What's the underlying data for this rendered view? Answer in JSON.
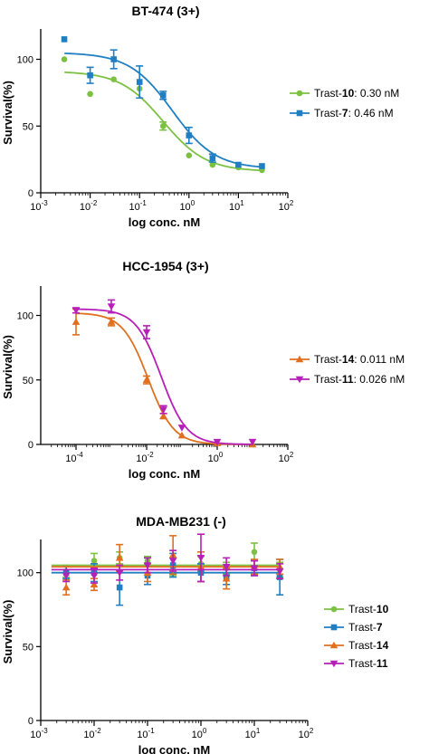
{
  "chart_data": [
    {
      "type": "scatter",
      "title": "BT-474 (3+)",
      "xlabel": "log conc. nM",
      "ylabel": "Survival(%)",
      "xscale": "log",
      "xlim": [
        0.001,
        100
      ],
      "ylim": [
        0,
        120
      ],
      "xticks": [
        {
          "base": "10",
          "exp": "-3"
        },
        {
          "base": "10",
          "exp": "-2"
        },
        {
          "base": "10",
          "exp": "-1"
        },
        {
          "base": "10",
          "exp": "0"
        },
        {
          "base": "10",
          "exp": "1"
        },
        {
          "base": "10",
          "exp": "2"
        }
      ],
      "yticks": [
        "0",
        "50",
        "100"
      ],
      "legend_position": "right",
      "series": [
        {
          "name": "Trast-10",
          "name_prefix": "Trast-",
          "name_num": "10",
          "value_text": ": 0.30 nM",
          "color": "#7DC142",
          "marker": "circle",
          "x": [
            0.003,
            0.01,
            0.03,
            0.1,
            0.3,
            1,
            3,
            10,
            30
          ],
          "y": [
            100,
            74,
            85,
            78,
            50,
            28,
            21,
            19,
            17
          ],
          "err": [
            0,
            0,
            0,
            0,
            3,
            0,
            0,
            0,
            0
          ],
          "fit": {
            "top": 91,
            "bottom": 16,
            "ec50": 0.3,
            "hill": 1.0
          }
        },
        {
          "name": "Trast-7",
          "name_prefix": "Trast-",
          "name_num": "7",
          "value_text": ":   0.46 nM",
          "color": "#1F7FC2",
          "marker": "square",
          "x": [
            0.003,
            0.01,
            0.03,
            0.1,
            0.3,
            1,
            3,
            10,
            30
          ],
          "y": [
            115,
            88,
            100,
            83,
            73,
            43,
            26,
            21,
            20
          ],
          "err": [
            0,
            6,
            7,
            12,
            3,
            6,
            3,
            0,
            0
          ],
          "fit": {
            "top": 105,
            "bottom": 18,
            "ec50": 0.46,
            "hill": 1.0
          }
        }
      ]
    },
    {
      "type": "scatter",
      "title": "HCC-1954 (3+)",
      "xlabel": "log conc. nM",
      "ylabel": "Survival(%)",
      "xscale": "log",
      "xlim": [
        1e-05,
        100
      ],
      "ylim": [
        0,
        120
      ],
      "xticks": [
        {
          "base": "10",
          "exp": "-4"
        },
        {
          "base": "10",
          "exp": "-2"
        },
        {
          "base": "10",
          "exp": "0"
        },
        {
          "base": "10",
          "exp": "2"
        }
      ],
      "yticks": [
        "0",
        "50",
        "100"
      ],
      "legend_position": "right",
      "series": [
        {
          "name": "Trast-14",
          "name_prefix": "Trast-",
          "name_num": "14",
          "value_text": ": 0.011 nM",
          "color": "#E0701F",
          "marker": "triangle-up",
          "x": [
            0.0001,
            0.001,
            0.01,
            0.03,
            0.1,
            1,
            10
          ],
          "y": [
            95,
            95,
            50,
            22,
            7,
            1,
            0
          ],
          "err": [
            10,
            3,
            3,
            2,
            0,
            0,
            0
          ],
          "fit": {
            "top": 102,
            "bottom": 0,
            "ec50": 0.011,
            "hill": 1.2
          }
        },
        {
          "name": "Trast-11",
          "name_prefix": "Trast-",
          "name_num": "11",
          "value_text": ": 0.026 nM",
          "color": "#B620B8",
          "marker": "triangle-down",
          "x": [
            0.0001,
            0.001,
            0.01,
            0.03,
            0.1,
            1,
            10
          ],
          "y": [
            104,
            107,
            87,
            27,
            13,
            2,
            2
          ],
          "err": [
            2,
            5,
            5,
            3,
            0,
            0,
            0
          ],
          "fit": {
            "top": 105,
            "bottom": 0,
            "ec50": 0.026,
            "hill": 1.2
          }
        }
      ]
    },
    {
      "type": "scatter",
      "title": "MDA-MB231 (-)",
      "xlabel": "log conc. nM",
      "ylabel": "Survival(%)",
      "xscale": "log",
      "xlim": [
        0.001,
        100
      ],
      "ylim": [
        0,
        120
      ],
      "xticks": [
        {
          "base": "10",
          "exp": "-3"
        },
        {
          "base": "10",
          "exp": "-2"
        },
        {
          "base": "10",
          "exp": "-1"
        },
        {
          "base": "10",
          "exp": "0"
        },
        {
          "base": "10",
          "exp": "1"
        },
        {
          "base": "10",
          "exp": "2"
        }
      ],
      "yticks": [
        "0",
        "50",
        "100"
      ],
      "legend_position": "right",
      "series": [
        {
          "name": "Trast-10",
          "name_prefix": "Trast-",
          "name_num": "10",
          "value_text": "",
          "color": "#7DC142",
          "marker": "circle",
          "x": [
            0.003,
            0.01,
            0.03,
            0.1,
            0.3,
            1,
            3,
            10,
            30
          ],
          "y": [
            101,
            108,
            110,
            108,
            104,
            106,
            103,
            114,
            102
          ],
          "err": [
            4,
            5,
            4,
            3,
            6,
            5,
            4,
            6,
            5
          ],
          "fit": {
            "flat": 105
          }
        },
        {
          "name": "Trast-7",
          "name_prefix": "Trast-",
          "name_num": "7",
          "value_text": "",
          "color": "#1F7FC2",
          "marker": "square",
          "x": [
            0.003,
            0.01,
            0.03,
            0.1,
            0.3,
            1,
            3,
            10,
            30
          ],
          "y": [
            100,
            100,
            90,
            98,
            105,
            100,
            97,
            103,
            97
          ],
          "err": [
            4,
            6,
            12,
            6,
            8,
            6,
            5,
            5,
            12
          ],
          "fit": {
            "flat": 100
          }
        },
        {
          "name": "Trast-14",
          "name_prefix": "Trast-",
          "name_num": "14",
          "value_text": "",
          "color": "#E0701F",
          "marker": "triangle-up",
          "x": [
            0.003,
            0.01,
            0.03,
            0.1,
            0.3,
            1,
            3,
            10,
            30
          ],
          "y": [
            90,
            92,
            110,
            100,
            112,
            104,
            96,
            104,
            104
          ],
          "err": [
            5,
            4,
            9,
            6,
            13,
            10,
            7,
            5,
            5
          ],
          "fit": {
            "flat": 104
          }
        },
        {
          "name": "Trast-11",
          "name_prefix": "Trast-",
          "name_num": "11",
          "value_text": "",
          "color": "#B620B8",
          "marker": "triangle-down",
          "x": [
            0.003,
            0.01,
            0.03,
            0.1,
            0.3,
            1,
            3,
            10,
            30
          ],
          "y": [
            98,
            98,
            100,
            105,
            108,
            110,
            104,
            103,
            101
          ],
          "err": [
            4,
            5,
            5,
            5,
            7,
            16,
            6,
            5,
            5
          ],
          "fit": {
            "flat": 102
          }
        }
      ]
    }
  ]
}
